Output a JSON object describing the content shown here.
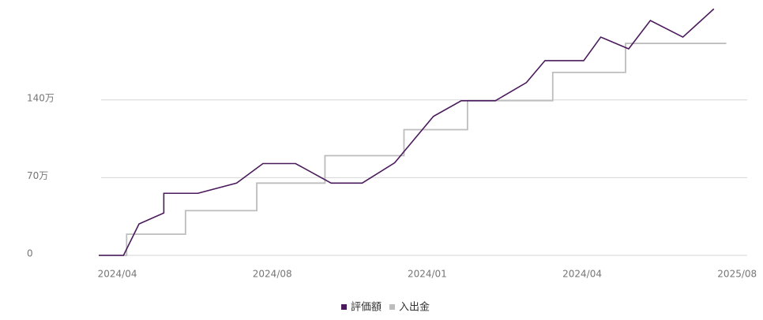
{
  "chart_data": {
    "type": "line",
    "series": [
      {
        "name": "入出金",
        "color": "#bdbdbd",
        "step": true,
        "x": [
          -0.12,
          0.06,
          0.06,
          0.44,
          0.44,
          0.9,
          0.9,
          1.34,
          1.34,
          1.85,
          1.85,
          2.26,
          2.26,
          2.81,
          2.81,
          3.28,
          3.28,
          3.93
        ],
        "values": [
          0,
          0,
          19.1,
          19.1,
          40.3,
          40.3,
          65.1,
          65.1,
          89.8,
          89.8,
          113.2,
          113.2,
          139.3,
          139.3,
          164.8,
          164.8,
          190.9,
          190.9
        ]
      },
      {
        "name": "評価額",
        "color": "#4a1a5c",
        "x": [
          -0.12,
          0.04,
          0.14,
          0.3,
          0.3,
          0.52,
          0.77,
          0.94,
          1.15,
          1.38,
          1.58,
          1.79,
          2.04,
          2.22,
          2.44,
          2.64,
          2.76,
          3.01,
          3.12,
          3.3,
          3.44,
          3.65,
          3.85
        ],
        "values": [
          0,
          0,
          28.3,
          38.2,
          55.9,
          55.9,
          65.1,
          82.7,
          82.7,
          65.1,
          65.1,
          83.4,
          125.2,
          139.3,
          139.3,
          155.6,
          175.4,
          175.4,
          196.6,
          186,
          211.5,
          196.6,
          222
        ]
      }
    ],
    "xlim": [
      -0.12,
      4.06
    ],
    "xticks": [
      {
        "value": 0,
        "label": "2024/04"
      },
      {
        "value": 1,
        "label": "2024/08"
      },
      {
        "value": 2,
        "label": "2024/01"
      },
      {
        "value": 3,
        "label": "2024/04"
      },
      {
        "value": 4,
        "label": "2025/08"
      }
    ],
    "ylim": [
      0,
      230
    ],
    "yticks": [
      0,
      {
        "value": 70,
        "label": "70万"
      },
      {
        "value": 140,
        "label": "140万"
      }
    ],
    "grid": true,
    "legend": "bottom"
  }
}
